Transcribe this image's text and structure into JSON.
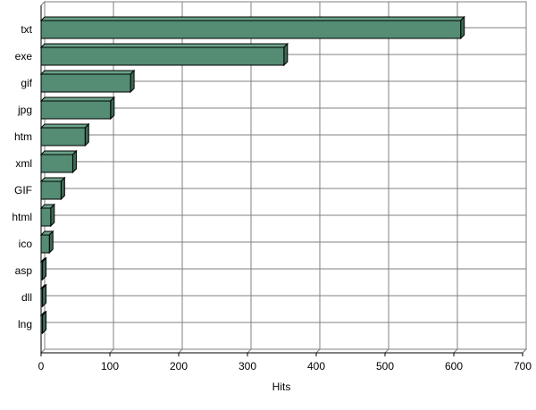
{
  "chart_data": {
    "type": "bar",
    "orientation": "horizontal",
    "style": "3d",
    "categories": [
      "txt",
      "exe",
      "gif",
      "jpg",
      "htm",
      "xml",
      "GIF",
      "html",
      "ico",
      "asp",
      "dll",
      "lng"
    ],
    "values": [
      610,
      353,
      130,
      101,
      64,
      46,
      29,
      14,
      12,
      2,
      2,
      2
    ],
    "title": "",
    "xlabel": "Hits",
    "ylabel": "",
    "xlim": [
      0,
      700
    ],
    "xticks": [
      "0",
      "100",
      "200",
      "300",
      "400",
      "500",
      "600",
      "700"
    ],
    "grid": true,
    "legend": "none",
    "colors": {
      "bar": "#548C74",
      "bar_top": "#6AA388",
      "bar_side": "#3C6A56",
      "grid": "#808080"
    }
  }
}
